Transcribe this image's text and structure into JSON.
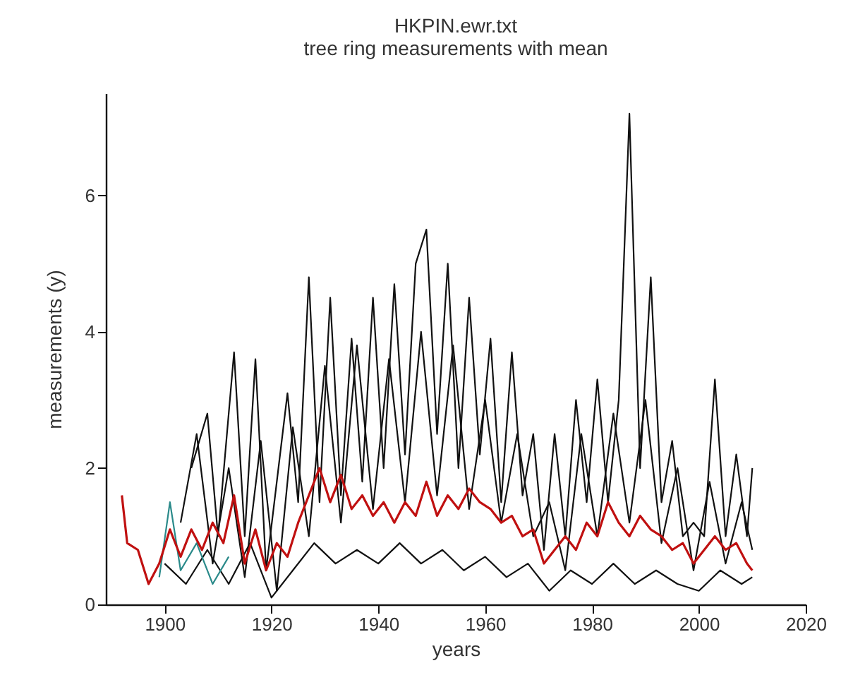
{
  "chart_data": {
    "type": "line",
    "title": "HKPIN.ewr.txt",
    "subtitle": "tree ring measurements with mean",
    "xlabel": "years",
    "ylabel": "measurements (y)",
    "xlim": [
      1889,
      2020
    ],
    "ylim": [
      0,
      7.5
    ],
    "grid": false,
    "xticks": [
      1900,
      1920,
      1940,
      1960,
      1980,
      2000,
      2020
    ],
    "yticks": [
      0,
      2,
      4,
      6
    ],
    "series": [
      {
        "color": "#111111",
        "x": [
          1905,
          1908,
          1910,
          1913,
          1915,
          1917,
          1919,
          1923,
          1925,
          1927,
          1929,
          1931,
          1933,
          1935,
          1937,
          1939,
          1941,
          1943,
          1945,
          1947,
          1949,
          1951,
          1953,
          1955,
          1957,
          1959,
          1961,
          1963,
          1965,
          1967,
          1969,
          1971,
          1973,
          1975,
          1977,
          1979,
          1981,
          1983,
          1985,
          1987,
          1989,
          1991,
          1993,
          1995,
          1997,
          1999,
          2001,
          2003,
          2005,
          2007,
          2009,
          2010
        ],
        "values": [
          2.0,
          2.8,
          1.0,
          3.7,
          1.0,
          3.6,
          0.5,
          3.1,
          1.5,
          4.8,
          1.5,
          4.5,
          1.6,
          3.9,
          1.8,
          4.5,
          2.0,
          4.7,
          2.2,
          5.0,
          5.5,
          2.5,
          5.0,
          2.0,
          4.5,
          2.2,
          3.9,
          1.5,
          3.7,
          1.6,
          2.5,
          0.8,
          2.5,
          1.0,
          3.0,
          1.5,
          3.3,
          1.5,
          3.0,
          7.2,
          2.0,
          4.8,
          1.5,
          2.4,
          1.0,
          1.2,
          1.0,
          3.3,
          1.0,
          2.2,
          1.0,
          2.0
        ]
      },
      {
        "color": "#111111",
        "x": [
          1903,
          1906,
          1909,
          1912,
          1915,
          1918,
          1921,
          1924,
          1927,
          1930,
          1933,
          1936,
          1939,
          1942,
          1945,
          1948,
          1951,
          1954,
          1957,
          1960,
          1963,
          1966,
          1969,
          1972,
          1975,
          1978,
          1981,
          1984,
          1987,
          1990,
          1993,
          1996,
          1999,
          2002,
          2005,
          2008,
          2010
        ],
        "values": [
          1.2,
          2.5,
          0.6,
          2.0,
          0.4,
          2.4,
          0.2,
          2.6,
          1.0,
          3.5,
          1.2,
          3.8,
          1.4,
          3.6,
          1.5,
          4.0,
          1.6,
          3.8,
          1.4,
          3.0,
          1.2,
          2.5,
          1.0,
          1.5,
          0.5,
          2.5,
          1.0,
          2.8,
          1.2,
          3.0,
          0.9,
          2.0,
          0.5,
          1.8,
          0.6,
          1.5,
          0.8
        ]
      },
      {
        "color": "#111111",
        "x": [
          1900,
          1904,
          1908,
          1912,
          1916,
          1920,
          1924,
          1928,
          1932,
          1936,
          1940,
          1944,
          1948,
          1952,
          1956,
          1960,
          1964,
          1968,
          1972,
          1976,
          1980,
          1984,
          1988,
          1992,
          1996,
          2000,
          2004,
          2008,
          2010
        ],
        "values": [
          0.6,
          0.3,
          0.8,
          0.3,
          0.9,
          0.1,
          0.5,
          0.9,
          0.6,
          0.8,
          0.6,
          0.9,
          0.6,
          0.8,
          0.5,
          0.7,
          0.4,
          0.6,
          0.2,
          0.5,
          0.3,
          0.6,
          0.3,
          0.5,
          0.3,
          0.2,
          0.5,
          0.3,
          0.4
        ]
      },
      {
        "color": "#2a8a8a",
        "x": [
          1899,
          1901,
          1903,
          1906,
          1909,
          1912
        ],
        "values": [
          0.4,
          1.5,
          0.5,
          0.9,
          0.3,
          0.7
        ]
      },
      {
        "color": "#c01010",
        "x": [
          1892,
          1893,
          1895,
          1897,
          1899,
          1901,
          1903,
          1905,
          1907,
          1909,
          1911,
          1913,
          1915,
          1917,
          1919,
          1921,
          1923,
          1925,
          1927,
          1929,
          1931,
          1933,
          1935,
          1937,
          1939,
          1941,
          1943,
          1945,
          1947,
          1949,
          1951,
          1953,
          1955,
          1957,
          1959,
          1961,
          1963,
          1965,
          1967,
          1969,
          1971,
          1973,
          1975,
          1977,
          1979,
          1981,
          1983,
          1985,
          1987,
          1989,
          1991,
          1993,
          1995,
          1997,
          1999,
          2001,
          2003,
          2005,
          2007,
          2009,
          2010
        ],
        "values": [
          1.6,
          0.9,
          0.8,
          0.3,
          0.6,
          1.1,
          0.7,
          1.1,
          0.8,
          1.2,
          0.9,
          1.6,
          0.6,
          1.1,
          0.5,
          0.9,
          0.7,
          1.2,
          1.6,
          2.0,
          1.5,
          1.9,
          1.4,
          1.6,
          1.3,
          1.5,
          1.2,
          1.5,
          1.3,
          1.8,
          1.3,
          1.6,
          1.4,
          1.7,
          1.5,
          1.4,
          1.2,
          1.3,
          1.0,
          1.1,
          0.6,
          0.8,
          1.0,
          0.8,
          1.2,
          1.0,
          1.5,
          1.2,
          1.0,
          1.3,
          1.1,
          1.0,
          0.8,
          0.9,
          0.6,
          0.8,
          1.0,
          0.8,
          0.9,
          0.6,
          0.5
        ]
      }
    ]
  }
}
